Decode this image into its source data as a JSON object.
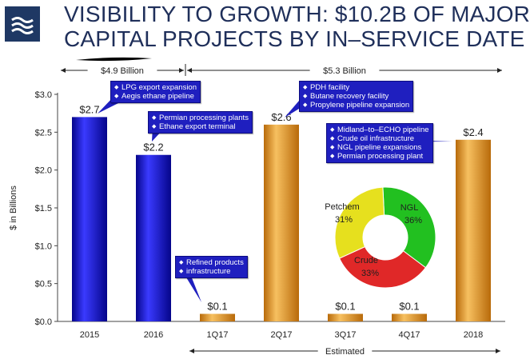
{
  "header": {
    "title_line1": "VISIBILITY TO GROWTH:  $10.2B OF MAJOR",
    "title_line2": "CAPITAL PROJECTS BY IN–SERVICE DATE",
    "logo_icon": "wave-logo-icon"
  },
  "colors": {
    "blue_bar": "#0a0ae6",
    "orange_bar": "#f0a020",
    "callout_bg": "#1f1fbf",
    "title": "#1f2f5a",
    "ngl": "#22c020",
    "crude": "#e02828",
    "petchem": "#e6e01e"
  },
  "spans": [
    {
      "label": "$4.9 Billion",
      "from": "2015",
      "to": "2016"
    },
    {
      "label": "$5.3 Billion",
      "from": "1Q17",
      "to": "2018"
    }
  ],
  "estimated_label": "Estimated",
  "callouts": [
    {
      "category": "2015",
      "items": [
        "LPG export expansion",
        "Aegis ethane pipeline"
      ]
    },
    {
      "category": "2016",
      "items": [
        "Permian processing plants",
        "Ethane export terminal"
      ]
    },
    {
      "category": "1Q17",
      "items": [
        "Refined products",
        "infrastructure"
      ]
    },
    {
      "category": "2Q17",
      "items": [
        "PDH facility",
        "Butane recovery facility",
        "Propylene pipeline expansion"
      ]
    },
    {
      "category": "2018",
      "items": [
        "Midland–to–ECHO pipeline",
        "Crude oil  infrastructure",
        "NGL pipeline expansions",
        "Permian processing plant"
      ]
    }
  ],
  "chart_data": [
    {
      "type": "bar",
      "categories": [
        "2015",
        "2016",
        "1Q17",
        "2Q17",
        "3Q17",
        "4Q17",
        "2018"
      ],
      "values": [
        2.7,
        2.2,
        0.1,
        2.6,
        0.1,
        0.1,
        2.4
      ],
      "data_labels": [
        "$2.7",
        "$2.2",
        "$0.1",
        "$2.6",
        "$0.1",
        "$0.1",
        "$2.4"
      ],
      "bar_colors": [
        "blue",
        "blue",
        "orange",
        "orange",
        "orange",
        "orange",
        "orange"
      ],
      "ylabel": "$ in Billions",
      "yticks": [
        "$0.0",
        "$0.5",
        "$1.0",
        "$1.5",
        "$2.0",
        "$2.5",
        "$3.0"
      ],
      "ylim": [
        0,
        3.0
      ],
      "grid": false
    },
    {
      "type": "pie",
      "donut": true,
      "slices": [
        {
          "label": "NGL",
          "pct_label": "36%",
          "value": 36,
          "color": "#22c020"
        },
        {
          "label": "Crude",
          "pct_label": "33%",
          "value": 33,
          "color": "#e02828"
        },
        {
          "label": "Petchem",
          "pct_label": "31%",
          "value": 31,
          "color": "#e6e01e"
        }
      ]
    }
  ]
}
